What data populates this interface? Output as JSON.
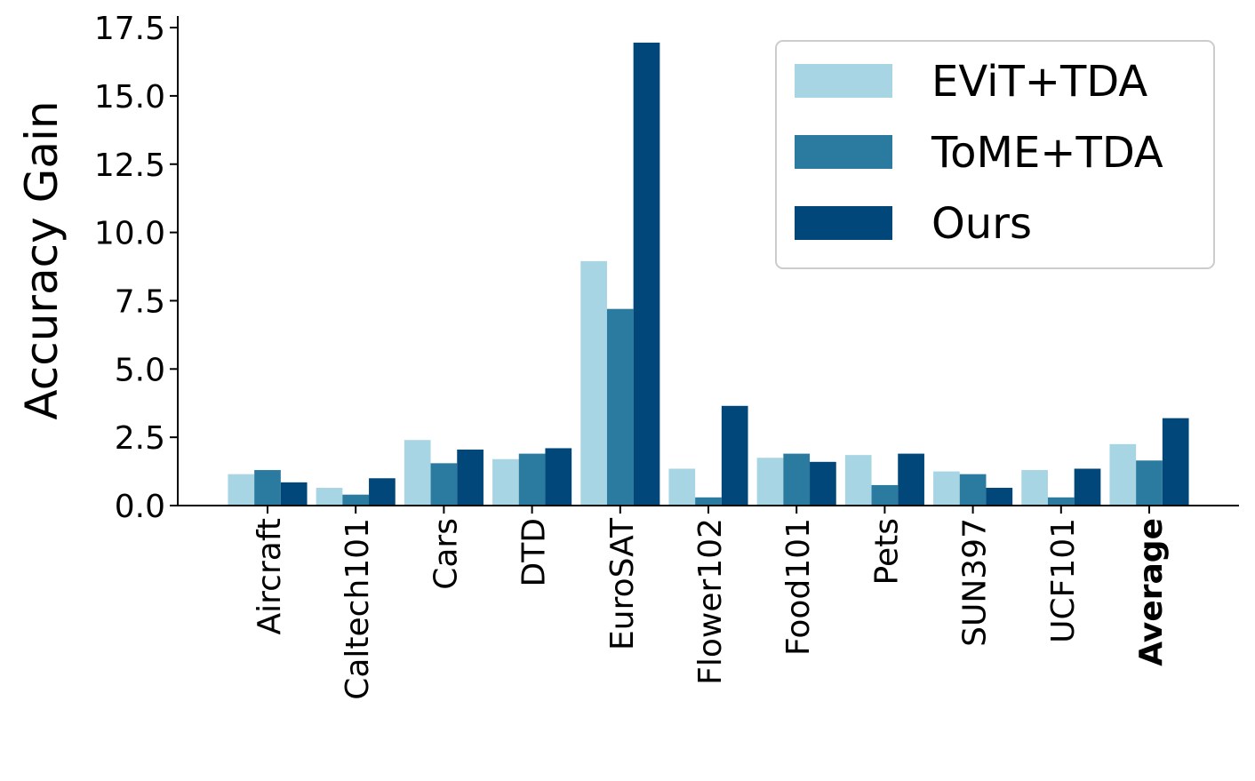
{
  "colors": {
    "EViT+TDA": "#a8d5e4",
    "ToME+TDA": "#2b7ba0",
    "Ours": "#01477a",
    "axis": "#000000",
    "legend_border": "#cccccc"
  },
  "chart_data": {
    "type": "bar",
    "title": "",
    "xlabel": "",
    "ylabel": "Accuracy Gain",
    "ylim": [
      0,
      18
    ],
    "yticks": [
      "0.0",
      "2.5",
      "5.0",
      "7.5",
      "10.0",
      "12.5",
      "15.0",
      "17.5"
    ],
    "grid": false,
    "legend_position": "top-right",
    "categories": [
      "Aircraft",
      "Caltech101",
      "Cars",
      "DTD",
      "EuroSAT",
      "Flower102",
      "Food101",
      "Pets",
      "SUN397",
      "UCF101",
      "Average"
    ],
    "bold_categories": [
      "Average"
    ],
    "series": [
      {
        "name": "EViT+TDA",
        "values": [
          1.15,
          0.65,
          2.4,
          1.7,
          8.95,
          1.35,
          1.75,
          1.85,
          1.25,
          1.3,
          2.25
        ]
      },
      {
        "name": "ToME+TDA",
        "values": [
          1.3,
          0.4,
          1.55,
          1.9,
          7.2,
          0.3,
          1.9,
          0.75,
          1.15,
          0.3,
          1.65
        ]
      },
      {
        "name": "Ours",
        "values": [
          0.85,
          1.0,
          2.05,
          2.1,
          16.95,
          3.65,
          1.6,
          1.9,
          0.65,
          1.35,
          3.2
        ]
      }
    ]
  }
}
